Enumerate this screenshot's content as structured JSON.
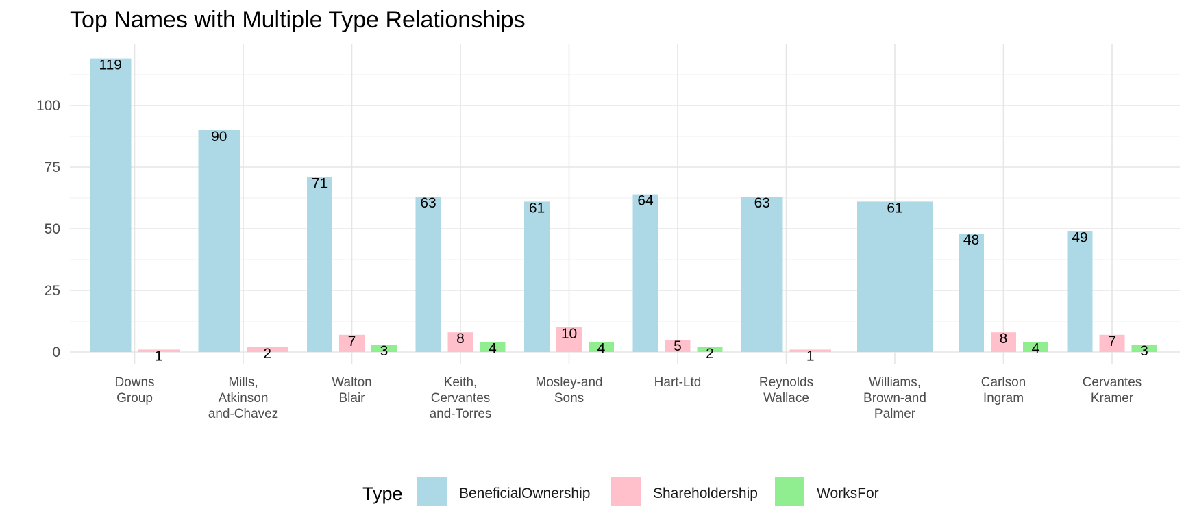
{
  "chart_data": {
    "type": "bar",
    "title": "Top Names with Multiple Type Relationships",
    "xlabel": "",
    "ylabel": "",
    "ylim": [
      0,
      125
    ],
    "yticks": [
      0,
      25,
      50,
      75,
      100
    ],
    "grid": true,
    "legend": {
      "title": "Type",
      "position": "bottom"
    },
    "categories": [
      [
        "Downs",
        "Group"
      ],
      [
        "Mills,",
        "Atkinson",
        "and-Chavez"
      ],
      [
        "Walton",
        "Blair"
      ],
      [
        "Keith,",
        "Cervantes",
        "and-Torres"
      ],
      [
        "Mosley-and",
        "Sons"
      ],
      [
        "Hart-Ltd"
      ],
      [
        "Reynolds",
        "Wallace"
      ],
      [
        "Williams,",
        "Brown-and",
        "Palmer"
      ],
      [
        "Carlson",
        "Ingram"
      ],
      [
        "Cervantes",
        "Kramer"
      ]
    ],
    "series": [
      {
        "name": "BeneficialOwnership",
        "color": "#ADD8E6",
        "values": [
          119,
          90,
          71,
          63,
          61,
          64,
          63,
          61,
          48,
          49
        ]
      },
      {
        "name": "Shareholdership",
        "color": "#FFC0CB",
        "values": [
          1,
          2,
          7,
          8,
          10,
          5,
          1,
          null,
          8,
          7
        ]
      },
      {
        "name": "WorksFor",
        "color": "#90EE90",
        "values": [
          null,
          null,
          3,
          4,
          4,
          2,
          null,
          null,
          4,
          3
        ]
      }
    ]
  }
}
